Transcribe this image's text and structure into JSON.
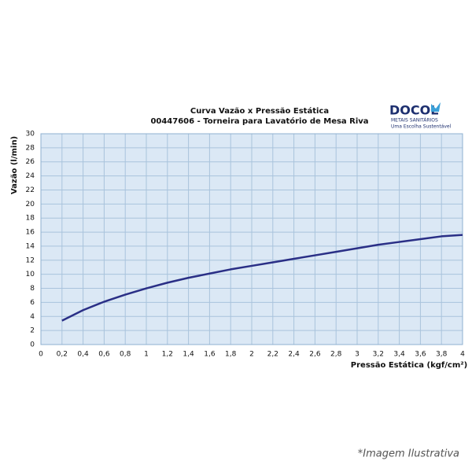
{
  "chart_data": {
    "type": "line",
    "title": "Curva Vazão x Pressão Estática",
    "subtitle": "00447606 - Torneira para Lavatório de Mesa Riva",
    "xlabel": "Pressão Estática (kgf/cm²)",
    "ylabel": "Vazão (l/min)",
    "x": [
      0.2,
      0.4,
      0.6,
      0.8,
      1.0,
      1.2,
      1.4,
      1.6,
      1.8,
      2.0,
      2.2,
      2.4,
      2.6,
      2.8,
      3.0,
      3.2,
      3.4,
      3.6,
      3.8,
      4.0
    ],
    "values": [
      3.4,
      4.9,
      6.1,
      7.1,
      8.0,
      8.8,
      9.5,
      10.1,
      10.7,
      11.2,
      11.7,
      12.2,
      12.7,
      13.2,
      13.7,
      14.2,
      14.6,
      15.0,
      15.4,
      15.6
    ],
    "color": "#2a2f86",
    "xlim": [
      0,
      4
    ],
    "xticks": [
      0,
      {
        "value": 0.2,
        "label": "0,2"
      },
      {
        "value": 0.4,
        "label": "0,4"
      },
      {
        "value": 0.6,
        "label": "0,6"
      },
      {
        "value": 0.8,
        "label": "0,8"
      },
      1,
      {
        "value": 1.2,
        "label": "1,2"
      },
      {
        "value": 1.4,
        "label": "1,4"
      },
      {
        "value": 1.6,
        "label": "1,6"
      },
      {
        "value": 1.8,
        "label": "1,8"
      },
      2,
      {
        "value": 2.2,
        "label": "2,2"
      },
      {
        "value": 2.4,
        "label": "2,4"
      },
      {
        "value": 2.6,
        "label": "2,6"
      },
      {
        "value": 2.8,
        "label": "2,8"
      },
      3,
      {
        "value": 3.2,
        "label": "3,2"
      },
      {
        "value": 3.4,
        "label": "3,4"
      },
      {
        "value": 3.6,
        "label": "3,6"
      },
      {
        "value": 3.8,
        "label": "3,8"
      },
      4
    ],
    "ylim": [
      0,
      30
    ],
    "yticks": [
      0,
      2,
      4,
      6,
      8,
      10,
      12,
      14,
      16,
      18,
      20,
      22,
      24,
      26,
      28,
      30
    ],
    "grid": true,
    "logo": {
      "brand": "DOCOL",
      "line1": "METAIS SANITÁRIOS",
      "line2": "Uma Escolha Sustentável"
    },
    "footnote": "*Imagem Ilustrativa"
  }
}
